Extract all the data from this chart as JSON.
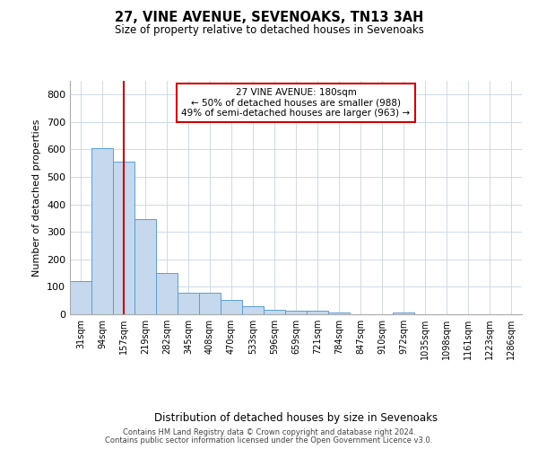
{
  "title": "27, VINE AVENUE, SEVENOAKS, TN13 3AH",
  "subtitle": "Size of property relative to detached houses in Sevenoaks",
  "xlabel": "Distribution of detached houses by size in Sevenoaks",
  "ylabel": "Number of detached properties",
  "bar_labels": [
    "31sqm",
    "94sqm",
    "157sqm",
    "219sqm",
    "282sqm",
    "345sqm",
    "408sqm",
    "470sqm",
    "533sqm",
    "596sqm",
    "659sqm",
    "721sqm",
    "784sqm",
    "847sqm",
    "910sqm",
    "972sqm",
    "1035sqm",
    "1098sqm",
    "1161sqm",
    "1223sqm",
    "1286sqm"
  ],
  "bar_values": [
    122,
    604,
    557,
    348,
    150,
    78,
    78,
    52,
    30,
    15,
    13,
    13,
    7,
    0,
    0,
    7,
    0,
    0,
    0,
    0,
    0
  ],
  "bar_color": "#c5d8ed",
  "bar_edge_color": "#5a9fd4",
  "redline_x": 2,
  "redline_color": "#cc0000",
  "annotation_text": "27 VINE AVENUE: 180sqm\n← 50% of detached houses are smaller (988)\n49% of semi-detached houses are larger (963) →",
  "annotation_box_color": "#ffffff",
  "annotation_box_edge_color": "#cc0000",
  "ylim": [
    0,
    850
  ],
  "yticks": [
    0,
    100,
    200,
    300,
    400,
    500,
    600,
    700,
    800
  ],
  "background_color": "#ffffff",
  "grid_color": "#c8d4e3",
  "footnote1": "Contains HM Land Registry data © Crown copyright and database right 2024.",
  "footnote2": "Contains public sector information licensed under the Open Government Licence v3.0."
}
